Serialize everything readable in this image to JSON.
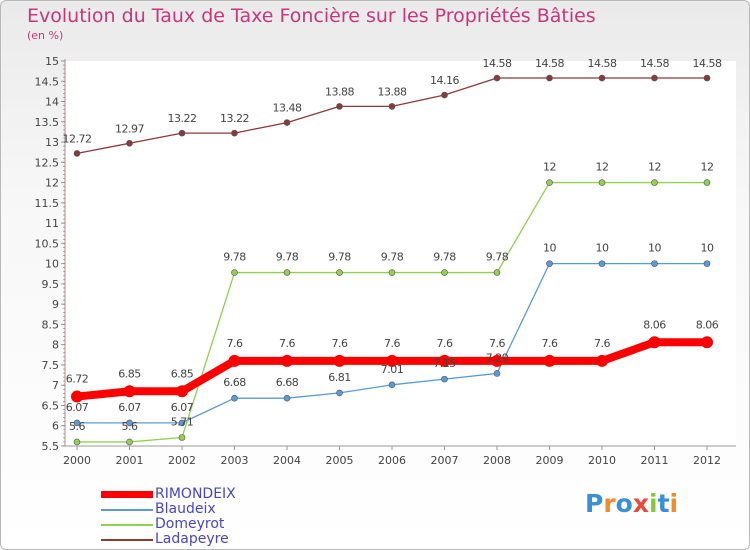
{
  "title": "Evolution du Taux de Taxe Foncière sur les Propriétés Bâties",
  "subtitle": "(en %)",
  "logo": "Proxiti",
  "chart_data": {
    "type": "line",
    "title": "Evolution du Taux de Taxe Foncière sur les Propriétés Bâties",
    "ylabel": "(en %)",
    "xlabel": "",
    "x": [
      "2000",
      "2001",
      "2002",
      "2003",
      "2004",
      "2005",
      "2006",
      "2007",
      "2008",
      "2009",
      "2010",
      "2011",
      "2012"
    ],
    "ylim": [
      5.5,
      15
    ],
    "yticks": [
      "5.5",
      "6",
      "6.5",
      "7",
      "7.5",
      "8",
      "8.5",
      "9",
      "9.5",
      "10",
      "10.5",
      "11",
      "11.5",
      "12",
      "12.5",
      "13",
      "13.5",
      "14",
      "14.5",
      "15"
    ],
    "grid": false,
    "legend_position": "bottom-left",
    "series": [
      {
        "name": "RIMONDEIX",
        "color": "#ff0000",
        "values": [
          6.72,
          6.85,
          6.85,
          7.6,
          7.6,
          7.6,
          7.6,
          7.6,
          7.6,
          7.6,
          7.6,
          8.06,
          8.06
        ],
        "labels": [
          "6.72",
          "6.85",
          "6.85",
          "7.6",
          "7.6",
          "7.6",
          "7.6",
          "7.6",
          "7.6",
          "7.6",
          "7.6",
          "8.06",
          "8.06"
        ]
      },
      {
        "name": "Blaudeix",
        "color": "#5b9bd5",
        "values": [
          6.07,
          6.07,
          6.07,
          6.68,
          6.68,
          6.81,
          7.01,
          7.15,
          7.29,
          10,
          10,
          10,
          10
        ],
        "labels": [
          "6.07",
          "6.07",
          "6.07",
          "6.68",
          "6.68",
          "6.81",
          "7.01",
          "7.15",
          "7.29",
          "10",
          "10",
          "10",
          "10"
        ]
      },
      {
        "name": "Domeyrot",
        "color": "#92d050",
        "values": [
          5.6,
          5.6,
          5.71,
          9.78,
          9.78,
          9.78,
          9.78,
          9.78,
          9.78,
          12,
          12,
          12,
          12
        ],
        "labels": [
          "5.6",
          "5.6",
          "5.71",
          "9.78",
          "9.78",
          "9.78",
          "9.78",
          "9.78",
          "9.78",
          "12",
          "12",
          "12",
          "12"
        ]
      },
      {
        "name": "Ladapeyre",
        "color": "#8b3a3a",
        "values": [
          12.72,
          12.97,
          13.22,
          13.22,
          13.48,
          13.88,
          13.88,
          14.16,
          14.58,
          14.58,
          14.58,
          14.58,
          14.58
        ],
        "labels": [
          "12.72",
          "12.97",
          "13.22",
          "13.22",
          "13.48",
          "13.88",
          "13.88",
          "14.16",
          "14.58",
          "14.58",
          "14.58",
          "14.58",
          "14.58"
        ]
      }
    ]
  }
}
